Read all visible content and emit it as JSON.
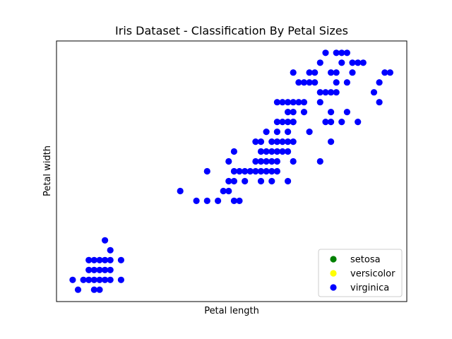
{
  "chart_data": {
    "type": "scatter",
    "title": "Iris Dataset - Classification By Petal Sizes",
    "xlabel": "Petal length",
    "ylabel": "Petal width",
    "xlim": [
      0.7,
      7.21
    ],
    "ylim": [
      -0.02,
      2.62
    ],
    "ticks_visible": false,
    "grid": false,
    "legend_position": "lower-right",
    "legend": [
      {
        "name": "setosa",
        "color": "#008000"
      },
      {
        "name": "versicolor",
        "color": "#ffff00"
      },
      {
        "name": "virginica",
        "color": "#0000ff"
      }
    ],
    "series": [
      {
        "name": "virginica",
        "color": "#0000ff",
        "points": [
          [
            1.0,
            0.2
          ],
          [
            1.1,
            0.1
          ],
          [
            1.2,
            0.2
          ],
          [
            1.3,
            0.2
          ],
          [
            1.4,
            0.2
          ],
          [
            1.5,
            0.2
          ],
          [
            1.6,
            0.2
          ],
          [
            1.7,
            0.2
          ],
          [
            1.9,
            0.2
          ],
          [
            1.3,
            0.3
          ],
          [
            1.4,
            0.3
          ],
          [
            1.5,
            0.3
          ],
          [
            1.7,
            0.3
          ],
          [
            1.4,
            0.1
          ],
          [
            1.5,
            0.1
          ],
          [
            1.3,
            0.4
          ],
          [
            1.5,
            0.4
          ],
          [
            1.6,
            0.4
          ],
          [
            1.7,
            0.4
          ],
          [
            1.9,
            0.4
          ],
          [
            1.6,
            0.6
          ],
          [
            1.7,
            0.5
          ],
          [
            1.6,
            0.3
          ],
          [
            1.4,
            0.4
          ],
          [
            3.0,
            1.1
          ],
          [
            3.3,
            1.0
          ],
          [
            3.5,
            1.0
          ],
          [
            3.7,
            1.0
          ],
          [
            3.9,
            1.1
          ],
          [
            3.8,
            1.1
          ],
          [
            3.5,
            1.3
          ],
          [
            4.0,
            1.0
          ],
          [
            4.1,
            1.0
          ],
          [
            3.9,
            1.2
          ],
          [
            4.0,
            1.2
          ],
          [
            4.0,
            1.3
          ],
          [
            4.1,
            1.3
          ],
          [
            4.2,
            1.3
          ],
          [
            4.3,
            1.3
          ],
          [
            4.4,
            1.3
          ],
          [
            4.5,
            1.3
          ],
          [
            4.6,
            1.3
          ],
          [
            4.7,
            1.3
          ],
          [
            4.8,
            1.3
          ],
          [
            3.9,
            1.4
          ],
          [
            4.4,
            1.4
          ],
          [
            4.5,
            1.4
          ],
          [
            4.6,
            1.4
          ],
          [
            4.7,
            1.4
          ],
          [
            4.8,
            1.4
          ],
          [
            5.1,
            1.4
          ],
          [
            4.2,
            1.2
          ],
          [
            4.5,
            1.2
          ],
          [
            4.7,
            1.2
          ],
          [
            5.0,
            1.2
          ],
          [
            4.0,
            1.5
          ],
          [
            4.5,
            1.5
          ],
          [
            4.6,
            1.5
          ],
          [
            4.7,
            1.5
          ],
          [
            4.8,
            1.5
          ],
          [
            4.9,
            1.5
          ],
          [
            5.0,
            1.5
          ],
          [
            4.4,
            1.6
          ],
          [
            4.5,
            1.6
          ],
          [
            4.7,
            1.6
          ],
          [
            4.8,
            1.6
          ],
          [
            4.9,
            1.6
          ],
          [
            5.0,
            1.6
          ],
          [
            5.1,
            1.6
          ],
          [
            4.6,
            1.7
          ],
          [
            4.8,
            1.7
          ],
          [
            5.0,
            1.7
          ],
          [
            5.4,
            1.7
          ],
          [
            4.8,
            1.8
          ],
          [
            4.9,
            1.8
          ],
          [
            5.1,
            1.8
          ],
          [
            5.0,
            1.9
          ],
          [
            5.1,
            1.9
          ],
          [
            5.3,
            1.9
          ],
          [
            5.8,
            1.9
          ],
          [
            5.0,
            2.0
          ],
          [
            5.1,
            2.0
          ],
          [
            5.3,
            2.0
          ],
          [
            5.6,
            2.0
          ],
          [
            4.8,
            2.0
          ],
          [
            4.9,
            2.0
          ],
          [
            6.7,
            2.0
          ],
          [
            5.6,
            2.1
          ],
          [
            5.7,
            2.1
          ],
          [
            5.8,
            2.1
          ],
          [
            5.9,
            2.1
          ],
          [
            6.6,
            2.1
          ],
          [
            5.2,
            2.2
          ],
          [
            5.3,
            2.2
          ],
          [
            5.4,
            2.2
          ],
          [
            5.5,
            2.2
          ],
          [
            5.9,
            2.2
          ],
          [
            6.1,
            2.2
          ],
          [
            5.4,
            2.3
          ],
          [
            5.5,
            2.3
          ],
          [
            5.8,
            2.3
          ],
          [
            6.2,
            2.3
          ],
          [
            6.8,
            2.3
          ],
          [
            5.1,
            2.3
          ],
          [
            6.0,
            2.4
          ],
          [
            6.2,
            2.4
          ],
          [
            6.4,
            2.4
          ],
          [
            5.6,
            2.4
          ],
          [
            5.9,
            2.5
          ],
          [
            5.7,
            2.5
          ],
          [
            6.0,
            2.5
          ],
          [
            6.1,
            2.5
          ],
          [
            6.3,
            2.4
          ],
          [
            5.7,
            1.8
          ],
          [
            5.8,
            1.8
          ],
          [
            6.0,
            1.8
          ],
          [
            6.3,
            1.8
          ],
          [
            6.1,
            1.9
          ],
          [
            5.1,
            1.8
          ],
          [
            5.0,
            1.8
          ],
          [
            6.9,
            2.3
          ],
          [
            6.7,
            2.2
          ],
          [
            5.6,
            1.4
          ],
          [
            5.8,
            1.6
          ],
          [
            5.2,
            2.0
          ],
          [
            5.9,
            2.3
          ]
        ]
      }
    ]
  }
}
